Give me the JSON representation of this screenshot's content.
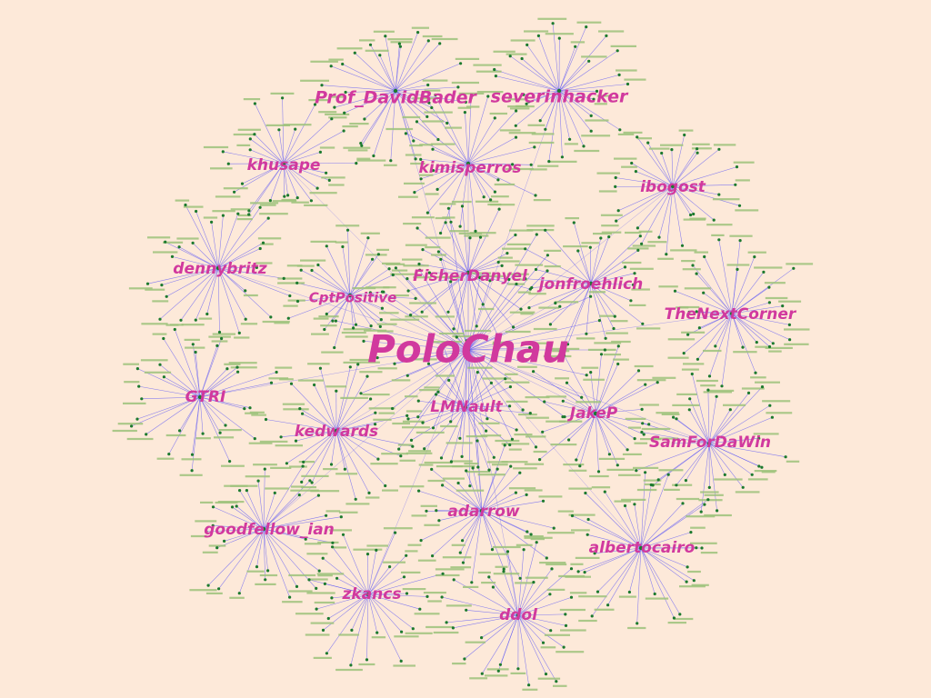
{
  "graph": {
    "type": "network",
    "colors": {
      "background": "#fde9d9",
      "hub_label": "#d1399e",
      "edge": "#5b55f5",
      "node": "#1c7a2e",
      "leaf_label": "#9cc27a"
    },
    "central_hub": "PoloChau",
    "hubs": [
      {
        "label": "PoloChau",
        "central": true
      },
      {
        "label": "Prof_DavidBader"
      },
      {
        "label": "severinhacker"
      },
      {
        "label": "khusape"
      },
      {
        "label": "kimisperros"
      },
      {
        "label": "ibogost"
      },
      {
        "label": "dennybritz"
      },
      {
        "label": "FisherDanyel"
      },
      {
        "label": "jonfroehlich"
      },
      {
        "label": "CptPositive"
      },
      {
        "label": "TheNextCorner"
      },
      {
        "label": "GTRI"
      },
      {
        "label": "LMNault"
      },
      {
        "label": "JakeP"
      },
      {
        "label": "kedwards"
      },
      {
        "label": "SamForDaWin"
      },
      {
        "label": "adarrow"
      },
      {
        "label": "goodfellow_ian"
      },
      {
        "label": "albertocairo"
      },
      {
        "label": "zkancs"
      },
      {
        "label": "ddol"
      }
    ]
  }
}
